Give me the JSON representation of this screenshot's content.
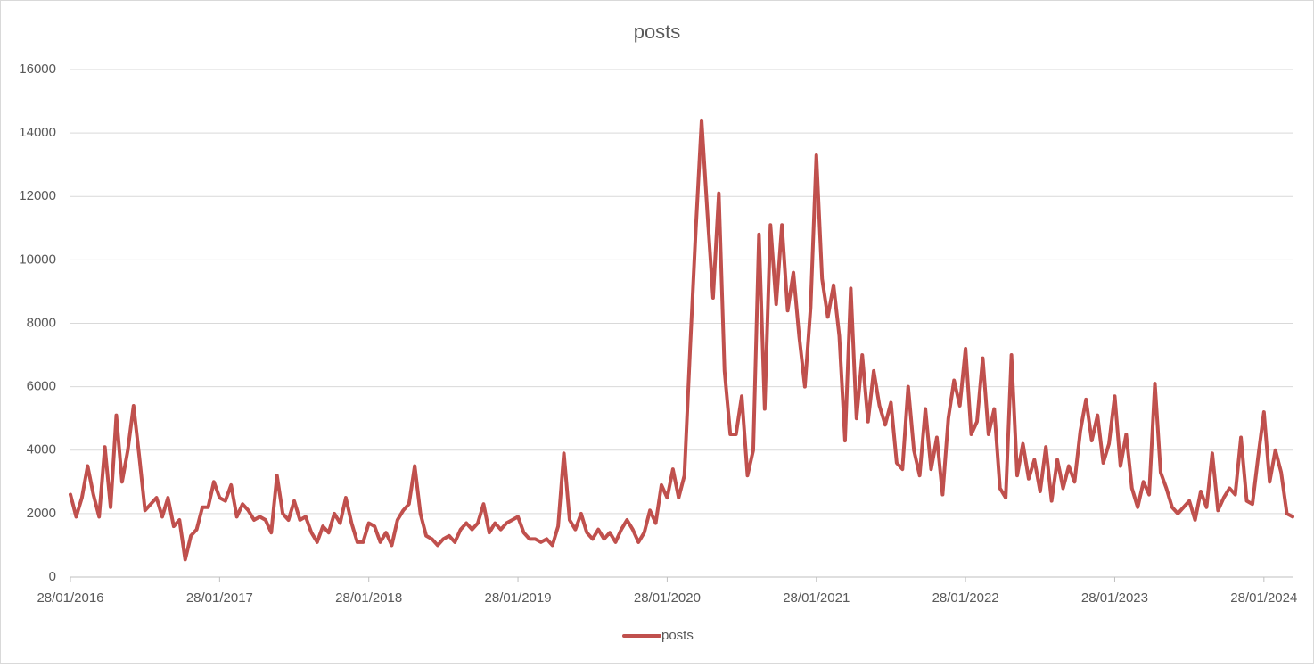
{
  "chart_data": {
    "type": "line",
    "title": "posts",
    "categories": [
      "28/01/2016",
      null,
      null,
      null,
      null,
      null,
      null,
      null,
      null,
      null,
      null,
      null,
      null,
      null,
      null,
      null,
      null,
      null,
      null,
      null,
      null,
      null,
      null,
      null,
      null,
      null,
      "28/01/2017",
      null,
      null,
      null,
      null,
      null,
      null,
      null,
      null,
      null,
      null,
      null,
      null,
      null,
      null,
      null,
      null,
      null,
      null,
      null,
      null,
      null,
      null,
      null,
      null,
      null,
      "28/01/2018",
      null,
      null,
      null,
      null,
      null,
      null,
      null,
      null,
      null,
      null,
      null,
      null,
      null,
      null,
      null,
      null,
      null,
      null,
      null,
      null,
      null,
      null,
      null,
      null,
      null,
      "28/01/2019",
      null,
      null,
      null,
      null,
      null,
      null,
      null,
      null,
      null,
      null,
      null,
      null,
      null,
      null,
      null,
      null,
      null,
      null,
      null,
      null,
      null,
      null,
      null,
      null,
      null,
      "28/01/2020",
      null,
      null,
      null,
      null,
      null,
      null,
      null,
      null,
      null,
      null,
      null,
      null,
      null,
      null,
      null,
      null,
      null,
      null,
      null,
      null,
      null,
      null,
      null,
      null,
      null,
      "28/01/2021",
      null,
      null,
      null,
      null,
      null,
      null,
      null,
      null,
      null,
      null,
      null,
      null,
      null,
      null,
      null,
      null,
      null,
      null,
      null,
      null,
      null,
      null,
      null,
      null,
      null,
      "28/01/2022",
      null,
      null,
      null,
      null,
      null,
      null,
      null,
      null,
      null,
      null,
      null,
      null,
      null,
      null,
      null,
      null,
      null,
      null,
      null,
      null,
      null,
      null,
      null,
      null,
      null,
      "28/01/2023",
      null,
      null,
      null,
      null,
      null,
      null,
      null,
      null,
      null,
      null,
      null,
      null,
      null,
      null,
      null,
      null,
      null,
      null,
      null,
      null,
      null,
      null,
      null,
      null,
      null,
      "28/01/2024",
      null,
      null,
      null,
      null,
      null
    ],
    "series": [
      {
        "name": "posts",
        "color": "#c0504d",
        "values": [
          2600,
          1900,
          2500,
          3500,
          2600,
          1900,
          4100,
          2200,
          5100,
          3000,
          4000,
          5400,
          3800,
          2100,
          2300,
          2500,
          1900,
          2500,
          1600,
          1800,
          550,
          1300,
          1500,
          2200,
          2200,
          3000,
          2500,
          2400,
          2900,
          1900,
          2300,
          2100,
          1800,
          1900,
          1800,
          1400,
          3200,
          2000,
          1800,
          2400,
          1800,
          1900,
          1400,
          1100,
          1600,
          1400,
          2000,
          1700,
          2500,
          1700,
          1100,
          1100,
          1700,
          1600,
          1100,
          1400,
          1000,
          1800,
          2100,
          2300,
          3500,
          2000,
          1300,
          1200,
          1000,
          1200,
          1300,
          1100,
          1500,
          1700,
          1500,
          1700,
          2300,
          1400,
          1700,
          1500,
          1700,
          1800,
          1900,
          1400,
          1200,
          1200,
          1100,
          1200,
          1000,
          1600,
          3900,
          1800,
          1500,
          2000,
          1400,
          1200,
          1500,
          1200,
          1400,
          1100,
          1500,
          1800,
          1500,
          1100,
          1400,
          2100,
          1700,
          2900,
          2500,
          3400,
          2500,
          3200,
          7200,
          11000,
          14400,
          11500,
          8800,
          12100,
          6500,
          4500,
          4500,
          5700,
          3200,
          4000,
          10800,
          5300,
          11100,
          8600,
          11100,
          8400,
          9600,
          7600,
          6000,
          8500,
          13300,
          9400,
          8200,
          9200,
          7600,
          4300,
          9100,
          5000,
          7000,
          4900,
          6500,
          5400,
          4800,
          5500,
          3600,
          3400,
          6000,
          4000,
          3200,
          5300,
          3400,
          4400,
          2600,
          5000,
          6200,
          5400,
          7200,
          4500,
          4900,
          6900,
          4500,
          5300,
          2800,
          2500,
          7000,
          3200,
          4200,
          3100,
          3700,
          2700,
          4100,
          2400,
          3700,
          2800,
          3500,
          3000,
          4600,
          5600,
          4300,
          5100,
          3600,
          4200,
          5700,
          3500,
          4500,
          2800,
          2200,
          3000,
          2600,
          6100,
          3300,
          2800,
          2200,
          2000,
          2200,
          2400,
          1800,
          2700,
          2200,
          3900,
          2100,
          2500,
          2800,
          2600,
          4400,
          2400,
          2300,
          3800,
          5200,
          3000,
          4000,
          3300,
          2000,
          1900
        ]
      }
    ],
    "ylim": [
      0,
      16000
    ],
    "yticks": [
      0,
      2000,
      4000,
      6000,
      8000,
      10000,
      12000,
      14000,
      16000
    ],
    "grid": true,
    "legend": "bottom"
  }
}
